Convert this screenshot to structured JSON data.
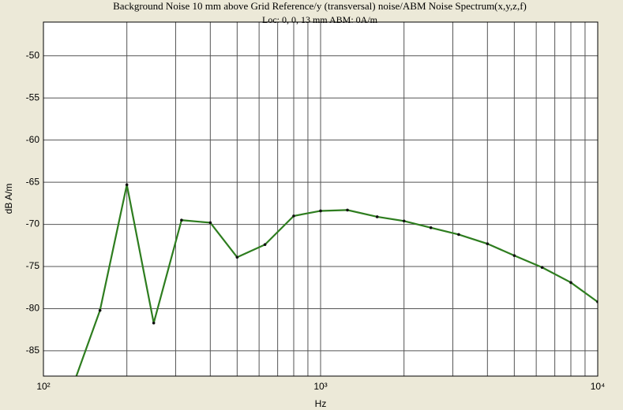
{
  "chart_data": {
    "type": "line",
    "title": "Background Noise 10 mm above Grid Reference/y (transversal) noise/ABM Noise Spectrum(x,y,z,f)",
    "subtitle": "Loc: 0, 0, 13 mm ABM: 0A/m",
    "x_label": "Hz",
    "y_label": "dB A/m",
    "x": [
      125,
      160,
      200,
      250,
      315,
      400,
      500,
      630,
      800,
      1000,
      1250,
      1600,
      2000,
      2500,
      3150,
      4000,
      5000,
      6300,
      8000,
      10000
    ],
    "series": [
      {
        "name": "y (transversal) noise",
        "color": "#2e7d1f",
        "values": [
          -90,
          -80.2,
          -65.3,
          -81.7,
          -69.5,
          -69.8,
          -73.9,
          -72.4,
          -69.0,
          -68.4,
          -68.3,
          -69.1,
          -69.6,
          -70.4,
          -71.2,
          -72.3,
          -73.7,
          -75.1,
          -76.9,
          -79.2
        ]
      }
    ],
    "x_scale": "log",
    "xlim": [
      100,
      10000
    ],
    "xticks": [
      {
        "value": 100,
        "label": "10²"
      },
      {
        "value": 1000,
        "label": "10³"
      },
      {
        "value": 10000,
        "label": "10⁴"
      }
    ],
    "xminor_ticks": [
      200,
      300,
      400,
      500,
      600,
      700,
      800,
      900,
      2000,
      3000,
      4000,
      5000,
      6000,
      7000,
      8000,
      9000
    ],
    "ylim": [
      -88,
      -46
    ],
    "yticks": [
      -50,
      -55,
      -60,
      -65,
      -70,
      -75,
      -80,
      -85
    ],
    "grid": true
  }
}
